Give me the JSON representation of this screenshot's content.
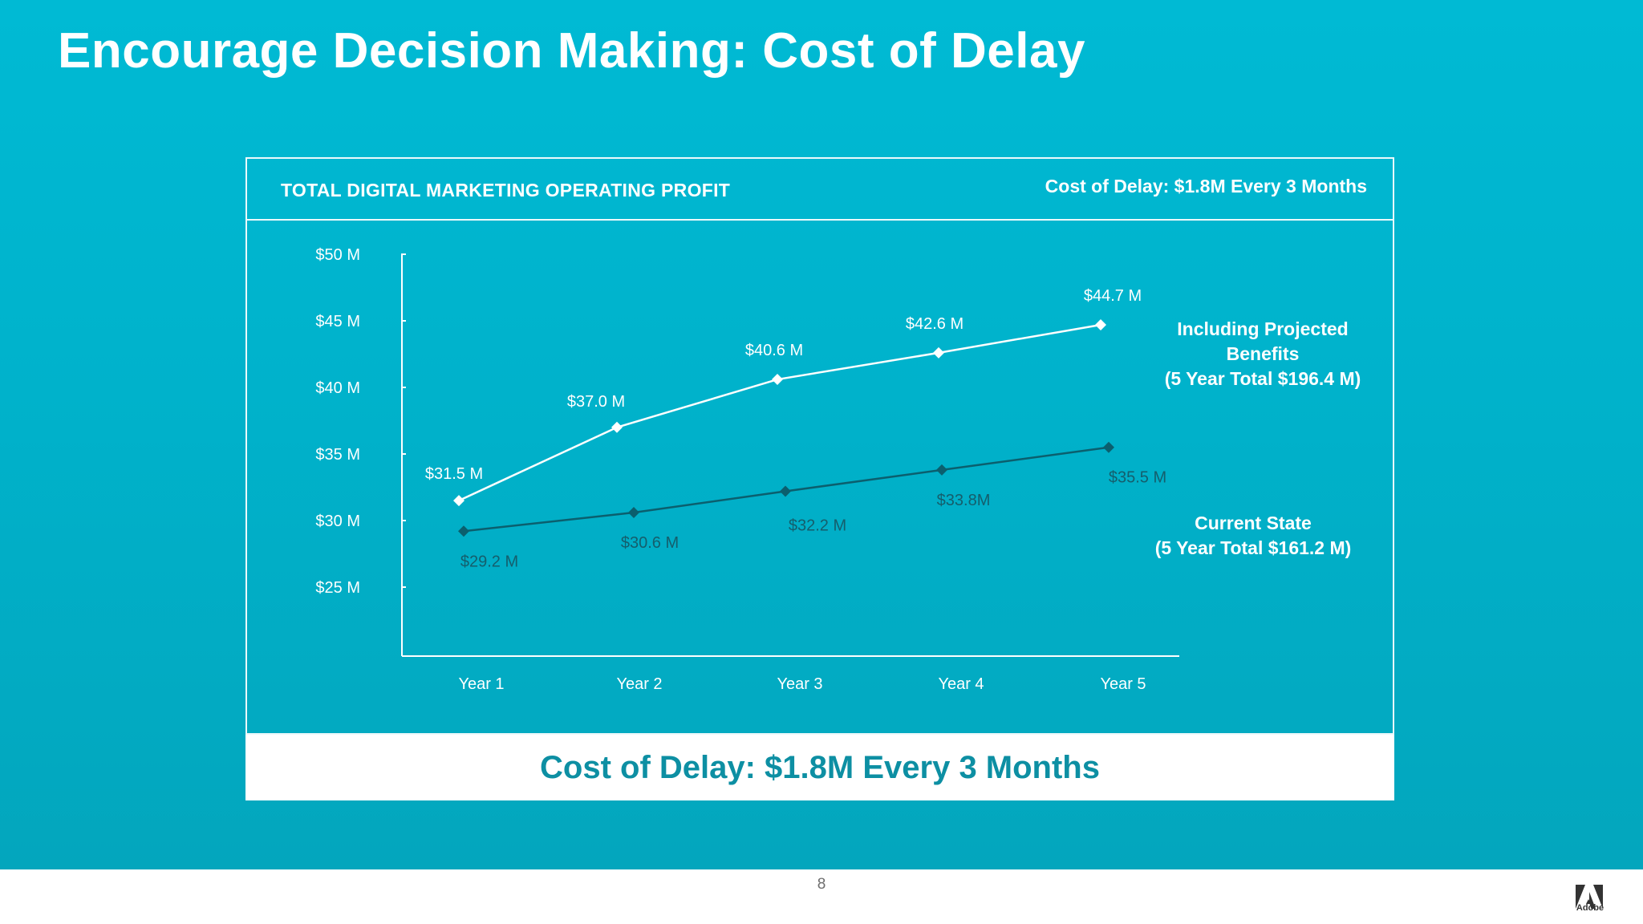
{
  "slide": {
    "title": "Encourage Decision Making: Cost of Delay",
    "page_number": "8",
    "logo_text": "Adobe"
  },
  "panel": {
    "title": "TOTAL DIGITAL MARKETING OPERATING PROFIT",
    "header_note": "Cost of Delay: $1.8M Every 3 Months"
  },
  "footer_banner": "Cost of Delay: $1.8M Every 3 Months",
  "colors": {
    "background": "#00b6cf",
    "projected_line": "#ffffff",
    "current_line": "#0b5f6e",
    "banner_text": "#0d8fa3"
  },
  "chart_data": {
    "type": "line",
    "title": "TOTAL DIGITAL MARKETING OPERATING PROFIT",
    "categories": [
      "Year 1",
      "Year 2",
      "Year 3",
      "Year 4",
      "Year 5"
    ],
    "y_ticks": [
      {
        "value": 25,
        "label": "$25 M"
      },
      {
        "value": 30,
        "label": "$30 M"
      },
      {
        "value": 35,
        "label": "$35 M"
      },
      {
        "value": 40,
        "label": "$40 M"
      },
      {
        "value": 45,
        "label": "$45 M"
      },
      {
        "value": 50,
        "label": "$50 M"
      }
    ],
    "ylim": [
      20,
      50
    ],
    "grid": false,
    "series": [
      {
        "name": "Including Projected Benefits",
        "name_lines": [
          "Including Projected",
          "Benefits",
          "(5 Year Total $196.4 M)"
        ],
        "marker": "diamond",
        "values": [
          31.5,
          37.0,
          40.6,
          42.6,
          44.7
        ],
        "labels": [
          "$31.5 M",
          "$37.0 M",
          "$40.6 M",
          "$42.6 M",
          "$44.7 M"
        ]
      },
      {
        "name": "Current State",
        "name_lines": [
          "Current State",
          "(5 Year Total $161.2 M)"
        ],
        "marker": "diamond",
        "values": [
          29.2,
          30.6,
          32.2,
          33.8,
          35.5
        ],
        "labels": [
          "$29.2 M",
          "$30.6 M",
          "$32.2 M",
          "$33.8M",
          "$35.5 M"
        ]
      }
    ]
  }
}
